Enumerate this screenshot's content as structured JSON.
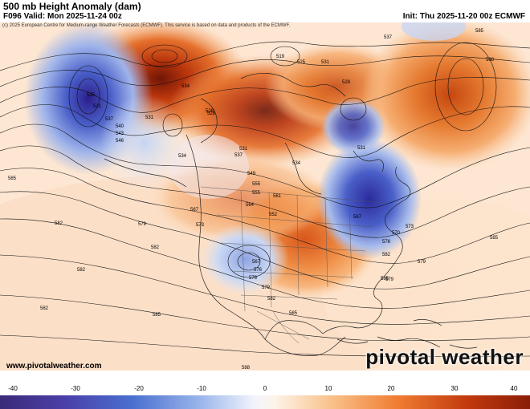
{
  "header": {
    "title": "500 mb Height Anomaly (dam)",
    "valid": "F096 Valid: Mon 2025-11-24 00z",
    "init": "Init: Thu 2025-11-20 00z ECMWF"
  },
  "map": {
    "copyright": "(c) 2025 European Centre for Medium-range Weather Forecasts (ECMWF). This service is based on data and products of the ECMWF.",
    "contour_labels": [
      "537",
      "585",
      "588",
      "534",
      "519",
      "525",
      "531",
      "528",
      "528",
      "525",
      "531",
      "537",
      "540",
      "543",
      "546",
      "531",
      "528",
      "534",
      "537",
      "531",
      "549",
      "555",
      "561",
      "567",
      "573",
      "579",
      "582",
      "582",
      "585",
      "576",
      "579",
      "582",
      "585",
      "564",
      "567",
      "570",
      "573",
      "576",
      "582",
      "567",
      "576",
      "579",
      "582",
      "585",
      "588",
      "585",
      "585",
      "582",
      "579",
      "552",
      "555",
      "534",
      "531"
    ],
    "watermark": "pivotal weather",
    "site": "www.pivotalweather.com"
  },
  "colorbar": {
    "ticks": [
      "-40",
      "-30",
      "-20",
      "-10",
      "0",
      "10",
      "20",
      "30",
      "40"
    ],
    "colors": {
      "deep_blue": "#2b1e8c",
      "blue": "#4a5fc8",
      "light_blue": "#b9cdf0",
      "white": "#ffffff",
      "light_orange": "#fbd9b8",
      "orange": "#f08a3c",
      "dark_orange": "#b8340c",
      "deep_red": "#7a1a08"
    }
  }
}
